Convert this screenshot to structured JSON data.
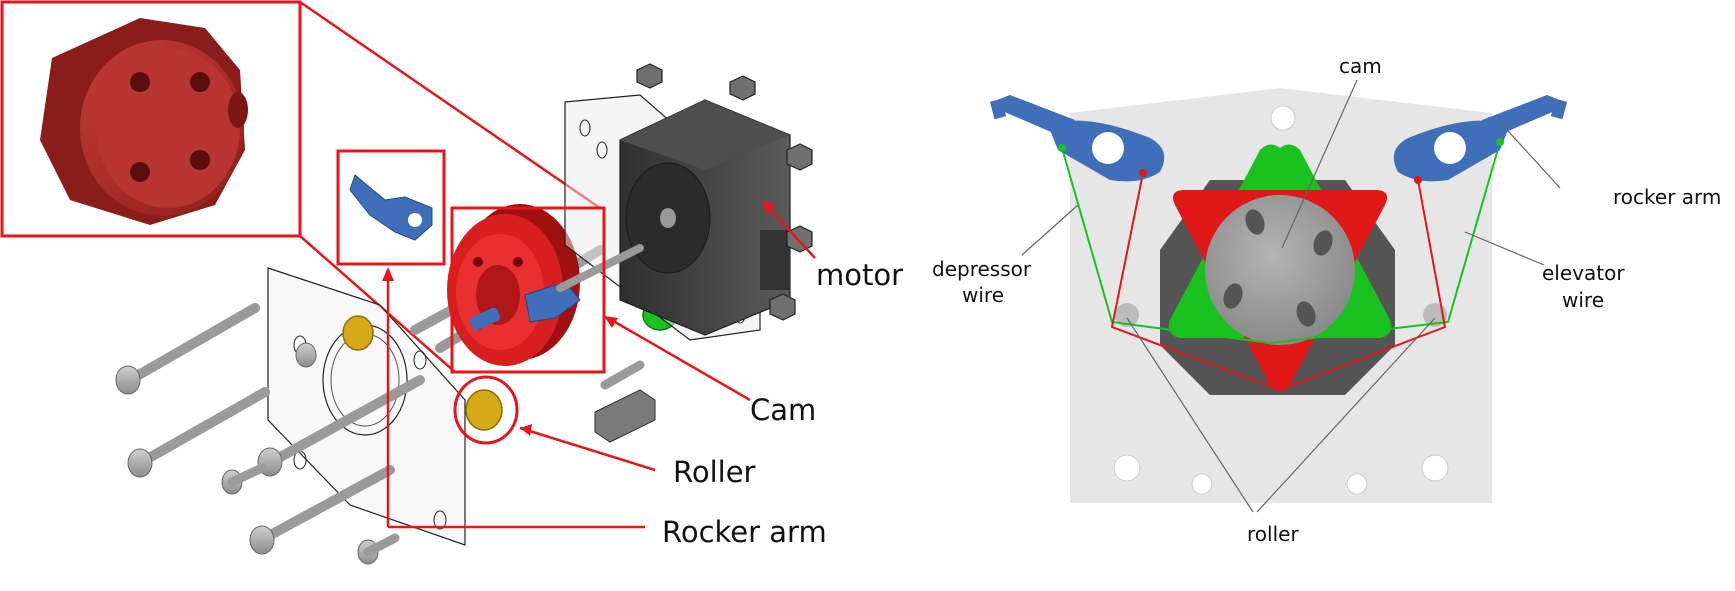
{
  "exploded_view": {
    "labels": {
      "motor": "motor",
      "cam": "Cam",
      "roller": "Roller",
      "rocker_arm": "Rocker arm"
    }
  },
  "mechanism_view": {
    "labels": {
      "cam": "cam",
      "rocker_arm": "rocker arm",
      "depressor_line1": "depressor",
      "depressor_line2": "wire",
      "elevator_line1": "elevator",
      "elevator_line2": "wire",
      "roller": "roller"
    }
  },
  "colors": {
    "highlight_red": "#e8161c",
    "cam_red": "#d81f1f",
    "inset_cam": "#b8302c",
    "rocker_blue": "#3f6fb8",
    "green": "#19c21e",
    "motor_gray": "#3d3d3d",
    "plate_gray": "#e6e6e6",
    "roller_yellow": "#d6a91a"
  }
}
